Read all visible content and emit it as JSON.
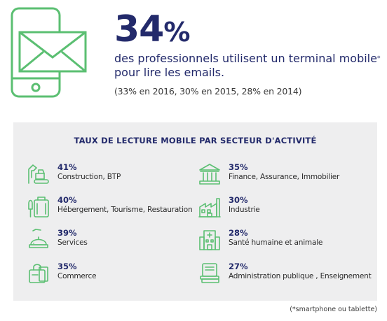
{
  "headline": {
    "percent": "34",
    "percent_symbol": "%",
    "line1": "des professionnels utilisent un terminal mobile",
    "footnote_mark": "*",
    "line2": "pour lire les emails.",
    "history": "(33% en 2016, 30% en 2015, 28% en 2014)"
  },
  "panel": {
    "title": "TAUX DE LECTURE MOBILE PAR SECTEUR D'ACTIVITÉ",
    "sectors": [
      {
        "percent": "41%",
        "label": "Construction, BTP",
        "icon": "excavator-icon"
      },
      {
        "percent": "35%",
        "label": "Finance, Assurance, Immobilier",
        "icon": "bank-icon"
      },
      {
        "percent": "40%",
        "label": "Hébergement, Tourisme, Restauration",
        "icon": "luggage-icon"
      },
      {
        "percent": "30%",
        "label": "Industrie",
        "icon": "factory-icon"
      },
      {
        "percent": "39%",
        "label": "Services",
        "icon": "service-bell-icon"
      },
      {
        "percent": "28%",
        "label": "Santé humaine et animale",
        "icon": "hospital-icon"
      },
      {
        "percent": "35%",
        "label": "Commerce",
        "icon": "shopping-bag-icon"
      },
      {
        "percent": "27%",
        "label": "Administration publique , Enseignement",
        "icon": "books-icon"
      }
    ]
  },
  "footnote": "(*smartphone ou tablette)",
  "colors": {
    "navy": "#232a6b",
    "green": "#5bbf72",
    "panel_bg": "#eeeeef"
  }
}
